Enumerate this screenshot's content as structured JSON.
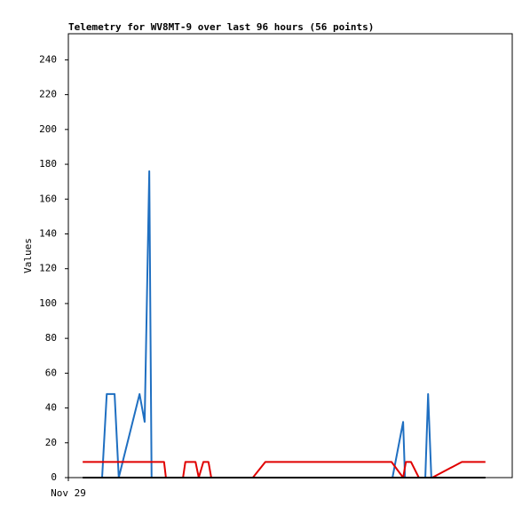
{
  "chart_data": {
    "type": "line",
    "title": "Telemetry for WV8MT-9 over last 96 hours (56 points)",
    "y_label": "Values",
    "xlim": [
      0,
      96
    ],
    "xticks": [
      {
        "value": 0,
        "label": "Nov 29"
      }
    ],
    "ylim": [
      0,
      255
    ],
    "yticks": [
      0,
      20,
      40,
      60,
      80,
      100,
      120,
      140,
      160,
      180,
      200,
      220,
      240
    ],
    "series": [
      {
        "color": "#1f6fc1",
        "x": [
          7.3,
          8.3,
          10.0,
          10.9,
          15.4,
          16.5,
          17.5,
          18.0,
          70.1,
          72.4,
          72.8,
          77.2,
          77.8,
          78.5
        ],
        "values": [
          0,
          48,
          48,
          0,
          48,
          32,
          176,
          0,
          0,
          32,
          0,
          0,
          48,
          0
        ]
      },
      {
        "color": "#e00000",
        "x": [
          3.1,
          20.7,
          21.1,
          24.8,
          25.3,
          27.5,
          28.2,
          29.2,
          30.3,
          30.9,
          39.9,
          42.6,
          69.9,
          72.4,
          73.0,
          74.1,
          75.8,
          78.7,
          85.1,
          90.2
        ],
        "values": [
          9,
          9,
          0,
          0,
          9,
          9,
          0,
          9,
          9,
          0,
          0,
          9,
          9,
          0,
          9,
          9,
          0,
          0,
          9,
          9
        ]
      },
      {
        "color": "#000000",
        "x": [
          3.1,
          90.2
        ],
        "values": [
          0,
          0
        ]
      }
    ]
  }
}
